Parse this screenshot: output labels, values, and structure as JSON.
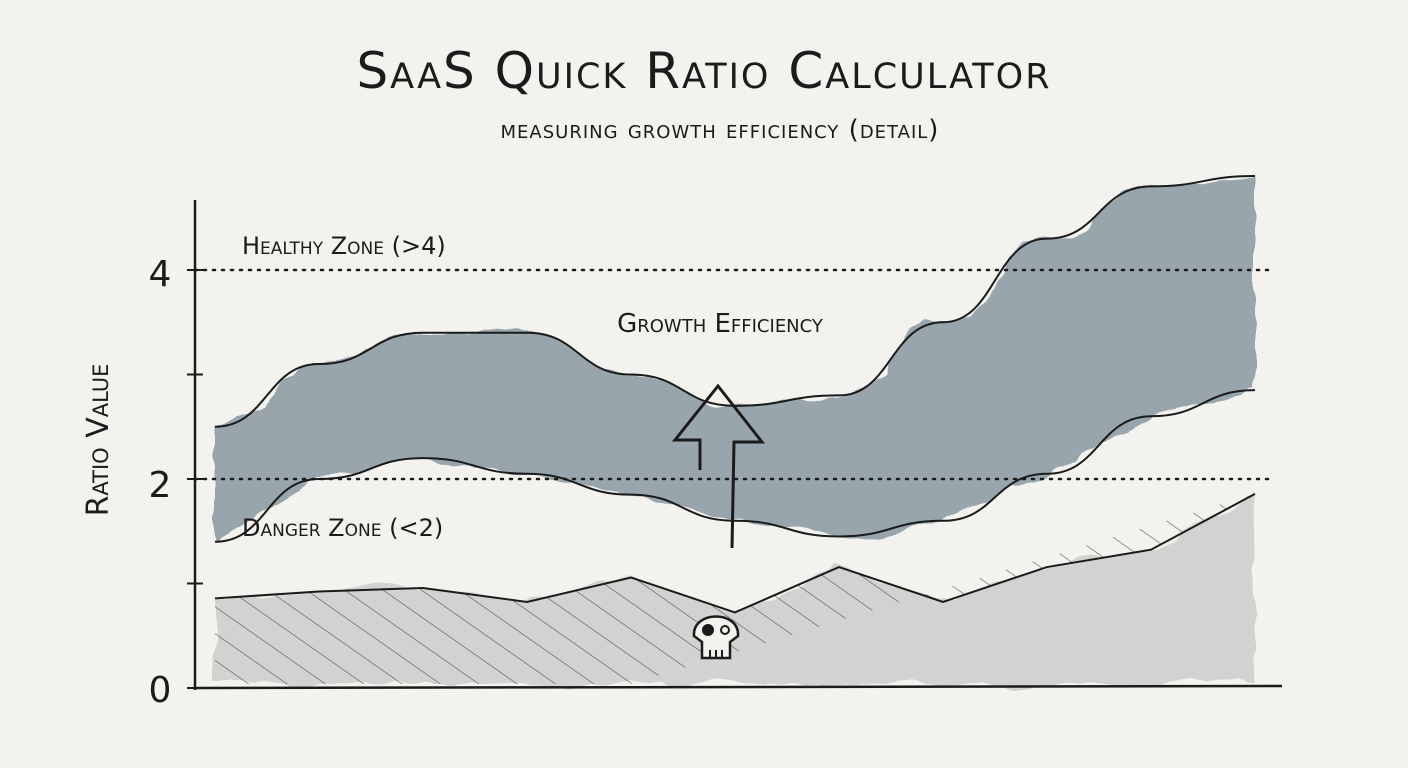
{
  "title": "SaaS Quick Ratio Calculator",
  "subtitle": "Measuring Growth Efficiency (Detail)",
  "chart_data": {
    "type": "area",
    "title": "SaaS Quick Ratio Calculator",
    "subtitle": "Measuring Growth Efficiency (Detail)",
    "xlabel": "",
    "ylabel": "Ratio Value",
    "ylim": [
      0,
      4.8
    ],
    "yticks": [
      "0",
      "2",
      "4"
    ],
    "ytick_values": [
      0,
      2,
      4
    ],
    "grid": false,
    "x": [
      0,
      1,
      2,
      3,
      4,
      5,
      6,
      7,
      8,
      9,
      10
    ],
    "series": [
      {
        "role": "band-upper",
        "values": [
          2.5,
          3.1,
          3.4,
          3.4,
          3.0,
          2.7,
          2.8,
          3.5,
          4.3,
          4.8,
          4.9
        ]
      },
      {
        "role": "band-lower",
        "values": [
          1.4,
          2.0,
          2.2,
          2.05,
          1.85,
          1.6,
          1.45,
          1.6,
          2.05,
          2.6,
          2.85
        ]
      },
      {
        "role": "danger-area",
        "values": [
          0.8,
          1.0,
          0.9,
          0.9,
          1.0,
          0.8,
          1.1,
          0.9,
          1.1,
          1.4,
          1.8
        ]
      }
    ],
    "reference_lines": [
      {
        "value": 4,
        "label": "Healthy Zone (>4)"
      },
      {
        "value": 2,
        "label": "Danger Zone (<2)"
      }
    ],
    "annotations": [
      {
        "text": "Growth Efficiency",
        "type": "arrow-up"
      },
      {
        "icon": "skull-icon"
      }
    ],
    "colors": {
      "band": "#5f7282",
      "danger": "#b9b9b9",
      "ink": "#1b1b1b",
      "paper": "#f3f2ee"
    }
  }
}
